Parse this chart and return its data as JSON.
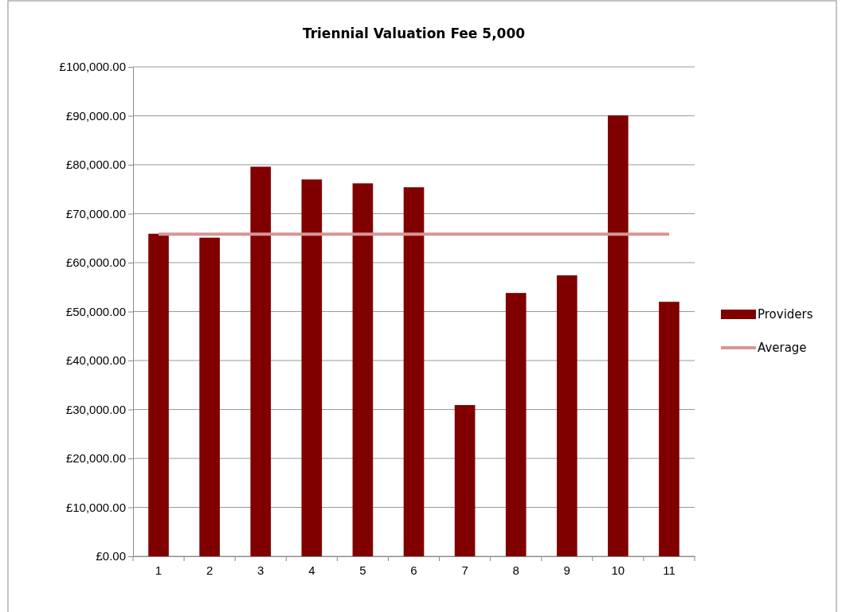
{
  "chart_data": {
    "type": "bar",
    "title": "Triennial Valuation Fee 5,000",
    "categories": [
      "1",
      "2",
      "3",
      "4",
      "5",
      "6",
      "7",
      "8",
      "9",
      "10",
      "11"
    ],
    "series": [
      {
        "name": "Providers",
        "color": "#800000",
        "values": [
          65900,
          65100,
          79600,
          77000,
          76200,
          75400,
          30900,
          53800,
          57400,
          90100,
          52000
        ]
      },
      {
        "name": "Average",
        "type": "line",
        "color": "#d99594",
        "values": [
          65800,
          65800,
          65800,
          65800,
          65800,
          65800,
          65800,
          65800,
          65800,
          65800,
          65800
        ]
      }
    ],
    "ylim": [
      0,
      100000
    ],
    "yticks": [
      {
        "value": 0,
        "label": "£0.00"
      },
      {
        "value": 10000,
        "label": "£10,000.00"
      },
      {
        "value": 20000,
        "label": "£20,000.00"
      },
      {
        "value": 30000,
        "label": "£30,000.00"
      },
      {
        "value": 40000,
        "label": "£40,000.00"
      },
      {
        "value": 50000,
        "label": "£50,000.00"
      },
      {
        "value": 60000,
        "label": "£60,000.00"
      },
      {
        "value": 70000,
        "label": "£70,000.00"
      },
      {
        "value": 80000,
        "label": "£80,000.00"
      },
      {
        "value": 90000,
        "label": "£90,000.00"
      },
      {
        "value": 100000,
        "label": "£100,000.00"
      }
    ],
    "grid": "y",
    "legend": "right",
    "marker": "none",
    "line_style": "solid"
  }
}
